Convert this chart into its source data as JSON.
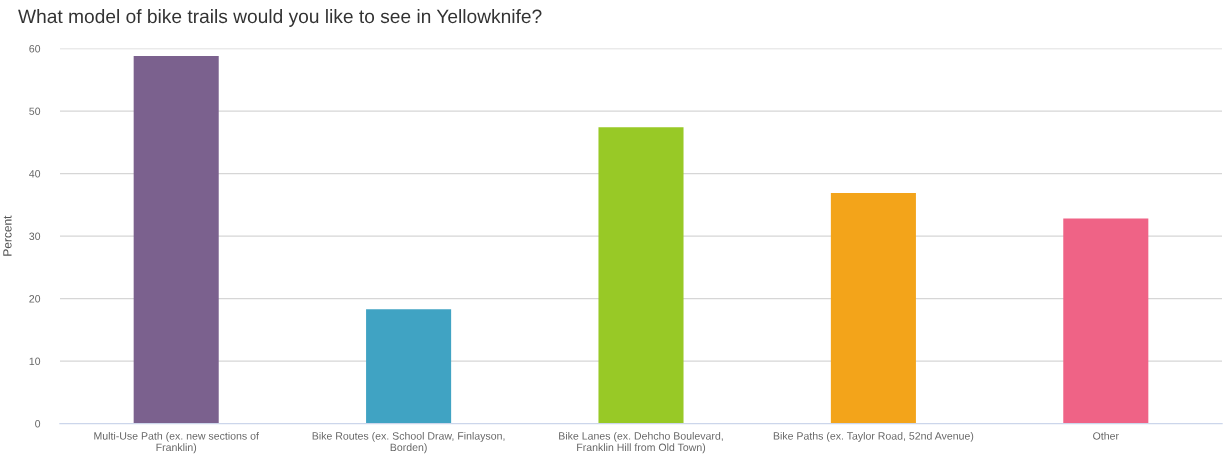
{
  "chart_data": {
    "type": "bar",
    "title": "What model of bike trails would you like to see in Yellowknife?",
    "ylabel": "Percent",
    "categories": [
      "Multi-Use Path (ex. new sections of\nFranklin)",
      "Bike Routes (ex. School Draw, Finlayson,\nBorden)",
      "Bike Lanes (ex. Dehcho Boulevard,\nFranklin Hill from Old Town)",
      "Bike Paths (ex. Taylor Road, 52nd Avenue)",
      "Other"
    ],
    "values": [
      58.8,
      18.3,
      47.4,
      36.9,
      32.8
    ],
    "colors": [
      "#7b618e",
      "#40a3c3",
      "#98c926",
      "#f3a41a",
      "#ef6386"
    ],
    "ylim": [
      0,
      60
    ],
    "yticks": [
      0,
      10,
      20,
      30,
      40,
      50,
      60
    ],
    "grid": "y",
    "legend": false
  }
}
